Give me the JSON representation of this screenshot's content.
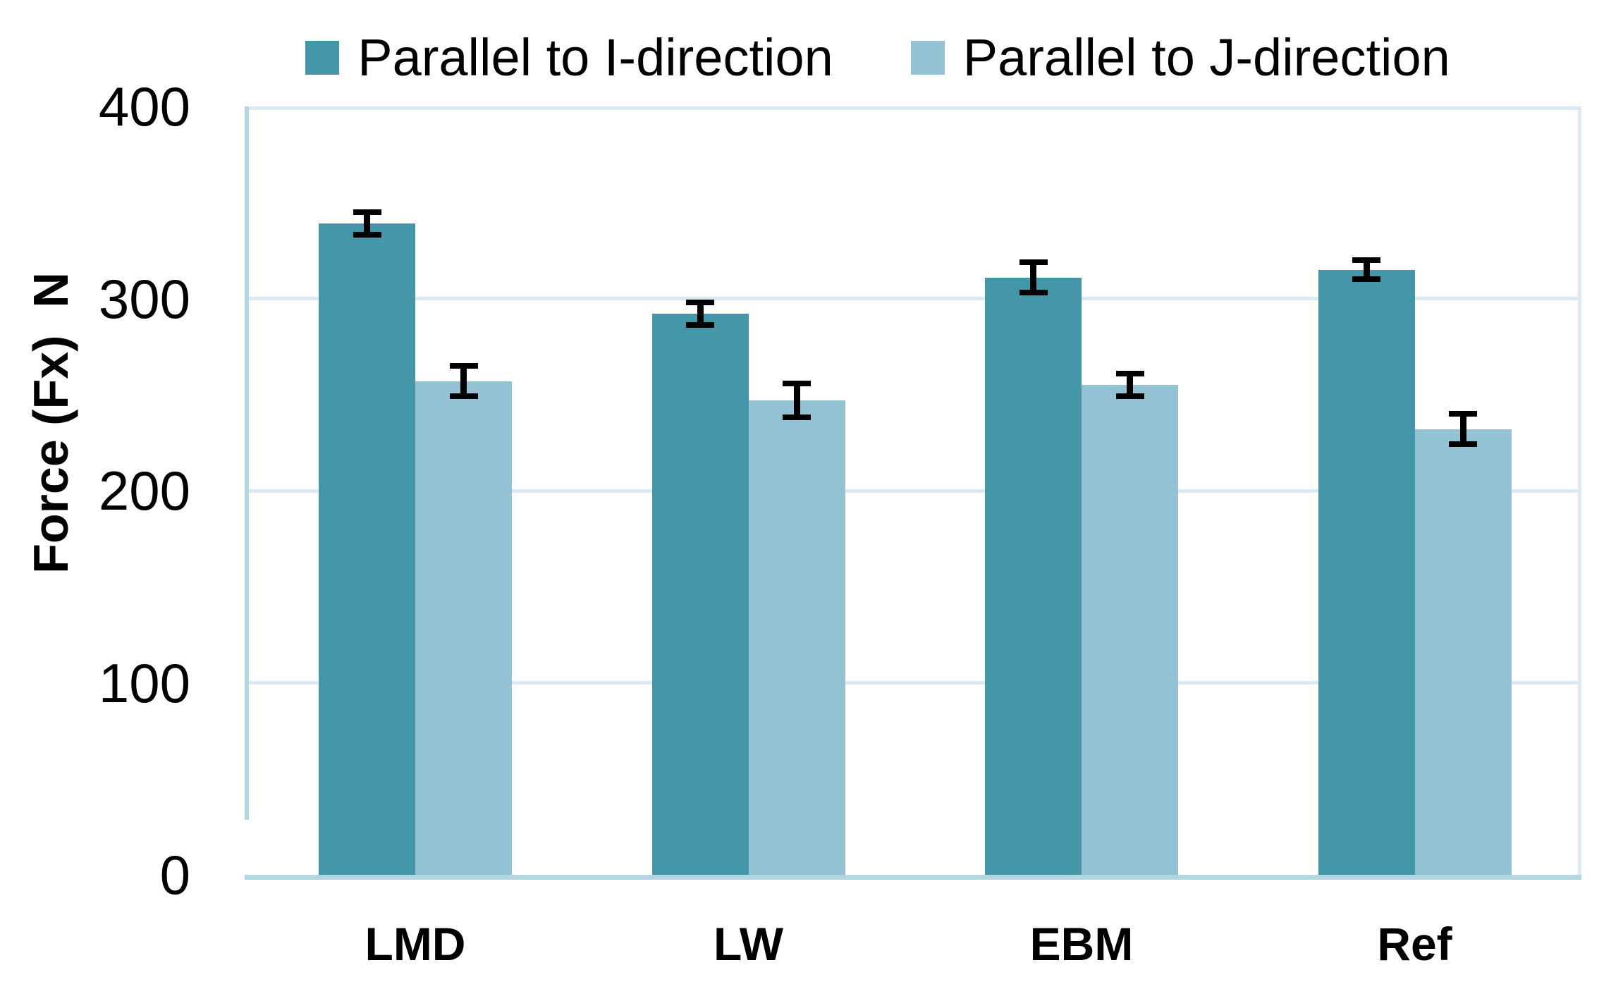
{
  "figure": {
    "kind": "grouped-bar-chart-with-error-bars",
    "background": "#ffffff",
    "text_color": "#000000",
    "gridline_color": "#dcebf3",
    "axis_line_color": "#b3d7e2"
  },
  "chart_data": {
    "type": "bar",
    "categories": [
      "LMD",
      "LW",
      "EBM",
      "Ref"
    ],
    "series": [
      {
        "name": "Parallel to I-direction",
        "color": "#4397a9",
        "values": [
          339,
          292,
          311,
          315
        ],
        "errors": [
          7,
          7,
          9,
          6
        ]
      },
      {
        "name": "Parallel to J-direction",
        "color": "#92c2d4",
        "values": [
          257,
          247,
          255,
          232
        ],
        "errors": [
          9,
          10,
          7,
          9
        ]
      }
    ],
    "title": "",
    "xlabel": "",
    "ylabel": "Force (Fx)  N",
    "ylim": [
      0,
      400
    ],
    "yticks": [
      0,
      100,
      200,
      300,
      400
    ],
    "grid": "horizontal",
    "legend_position": "top-center",
    "error_bar_color": "#000000"
  }
}
